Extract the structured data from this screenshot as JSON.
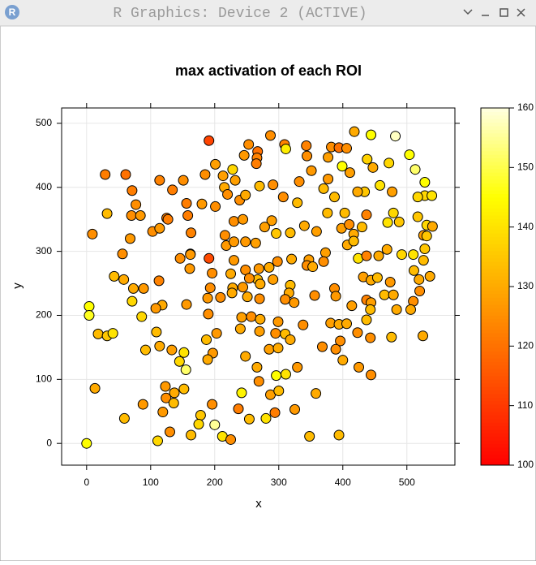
{
  "window": {
    "title": "R Graphics: Device 2 (ACTIVE)"
  },
  "chart_data": {
    "type": "scatter",
    "title": "max activation of each ROI",
    "x_label": "x",
    "y_label": "y",
    "xlim": [
      -39,
      575
    ],
    "ylim": [
      -34,
      524
    ],
    "xticks": [
      0,
      100,
      200,
      300,
      400,
      500
    ],
    "yticks": [
      0,
      100,
      200,
      300,
      400,
      500
    ],
    "zlim": [
      100,
      160
    ],
    "zticks": [
      100,
      110,
      120,
      130,
      140,
      150,
      160
    ],
    "grid": true,
    "x": [
      191,
      287,
      418,
      444,
      482,
      253,
      309,
      343,
      382,
      394,
      406,
      267,
      266,
      265,
      246,
      311,
      344,
      377,
      438,
      472,
      504,
      513,
      399,
      411,
      447,
      201,
      228,
      185,
      151,
      114,
      29,
      61,
      213,
      232,
      291,
      332,
      351,
      377,
      528,
      528,
      539,
      517,
      458,
      434,
      477,
      387,
      370,
      423,
      270,
      215,
      71,
      134,
      239,
      248,
      220,
      307,
      329,
      180,
      156,
      201,
      77,
      70,
      84,
      32,
      158,
      125,
      230,
      244,
      289,
      376,
      403,
      437,
      479,
      470,
      488,
      517,
      278,
      296,
      318,
      340,
      359,
      398,
      410,
      417,
      430,
      531,
      540,
      526,
      531,
      9,
      103,
      114,
      127,
      68,
      163,
      216,
      218,
      230,
      248,
      264,
      162,
      56,
      146,
      162,
      191,
      230,
      298,
      320,
      347,
      373,
      407,
      417,
      424,
      437,
      456,
      469,
      492,
      510,
      528,
      526,
      344,
      353,
      370,
      248,
      269,
      285,
      161,
      196,
      225,
      267,
      254,
      291,
      432,
      444,
      454,
      474,
      511,
      520,
      536,
      43,
      58,
      113,
      73,
      89,
      71,
      4,
      4,
      86,
      118,
      108,
      156,
      189,
      209,
      244,
      271,
      318,
      316,
      324,
      310,
      270,
      251,
      228,
      227,
      193,
      356,
      387,
      389,
      414,
      437,
      444,
      443,
      465,
      479,
      484,
      510,
      506,
      519,
      190,
      242,
      257,
      240,
      271,
      270,
      299,
      338,
      381,
      394,
      406,
      437,
      423,
      443,
      476,
      525,
      396,
      389,
      400,
      425,
      444,
      368,
      18,
      32,
      41,
      109,
      187,
      203,
      295,
      310,
      318,
      285,
      299,
      248,
      92,
      114,
      133,
      152,
      145,
      197,
      189,
      155,
      266,
      296,
      311,
      329,
      269,
      123,
      124,
      137,
      136,
      152,
      13,
      88,
      196,
      178,
      242,
      287,
      300,
      358,
      237,
      254,
      280,
      294,
      325,
      59,
      119,
      130,
      163,
      175,
      200,
      212,
      225,
      111,
      348,
      394,
      0
    ],
    "y": [
      473,
      481,
      487,
      482,
      480,
      467,
      467,
      465,
      463,
      462,
      461,
      456,
      446,
      437,
      450,
      460,
      449,
      447,
      444,
      438,
      451,
      428,
      433,
      423,
      431,
      436,
      428,
      420,
      411,
      411,
      420,
      420,
      418,
      411,
      404,
      409,
      426,
      413,
      408,
      387,
      387,
      385,
      403,
      393,
      393,
      385,
      398,
      393,
      402,
      400,
      395,
      396,
      380,
      388,
      389,
      385,
      376,
      374,
      375,
      370,
      373,
      356,
      356,
      359,
      356,
      352,
      347,
      350,
      348,
      360,
      360,
      357,
      360,
      345,
      346,
      354,
      338,
      328,
      329,
      340,
      331,
      336,
      342,
      327,
      338,
      341,
      339,
      325,
      324,
      327,
      331,
      336,
      350,
      320,
      329,
      325,
      309,
      315,
      315,
      313,
      296,
      296,
      289,
      295,
      289,
      286,
      284,
      288,
      287,
      298,
      310,
      316,
      289,
      293,
      293,
      303,
      295,
      295,
      304,
      286,
      278,
      276,
      284,
      271,
      273,
      275,
      273,
      266,
      265,
      256,
      258,
      256,
      260,
      255,
      259,
      252,
      270,
      238,
      261,
      261,
      256,
      254,
      242,
      242,
      222,
      214,
      200,
      198,
      216,
      211,
      217,
      227,
      228,
      244,
      249,
      247,
      235,
      220,
      225,
      226,
      229,
      243,
      235,
      243,
      231,
      242,
      230,
      215,
      224,
      220,
      209,
      232,
      232,
      209,
      222,
      209,
      256,
      202,
      197,
      198,
      179,
      194,
      175,
      190,
      185,
      188,
      186,
      187,
      193,
      173,
      165,
      166,
      168,
      160,
      147,
      130,
      119,
      107,
      151,
      171,
      168,
      172,
      174,
      162,
      172,
      172,
      171,
      162,
      147,
      149,
      136,
      146,
      152,
      146,
      142,
      128,
      141,
      131,
      115,
      119,
      106,
      108,
      119,
      97,
      89,
      71,
      79,
      63,
      85,
      86,
      61,
      61,
      44,
      79,
      76,
      82,
      78,
      54,
      38,
      39,
      48,
      53,
      39,
      49,
      18,
      13,
      30,
      29,
      11,
      6,
      4,
      11,
      13,
      0
    ],
    "z": [
      112,
      125,
      130,
      145,
      158,
      125,
      123,
      123,
      125,
      120,
      125,
      120,
      123,
      122,
      127,
      142,
      125,
      128,
      137,
      138,
      145,
      152,
      145,
      128,
      130,
      128,
      138,
      125,
      125,
      123,
      122,
      120,
      128,
      128,
      125,
      125,
      127,
      127,
      145,
      138,
      140,
      138,
      140,
      135,
      128,
      133,
      133,
      130,
      133,
      130,
      122,
      122,
      125,
      130,
      125,
      125,
      133,
      127,
      122,
      125,
      125,
      125,
      127,
      133,
      122,
      122,
      125,
      127,
      128,
      133,
      133,
      123,
      138,
      140,
      135,
      135,
      128,
      135,
      133,
      130,
      128,
      128,
      125,
      130,
      133,
      138,
      130,
      128,
      135,
      125,
      125,
      127,
      122,
      127,
      123,
      125,
      127,
      127,
      127,
      128,
      128,
      125,
      125,
      127,
      113,
      127,
      125,
      130,
      128,
      128,
      130,
      133,
      140,
      123,
      130,
      130,
      138,
      140,
      135,
      133,
      125,
      130,
      125,
      125,
      127,
      130,
      127,
      125,
      130,
      133,
      125,
      128,
      128,
      130,
      133,
      127,
      133,
      125,
      130,
      133,
      130,
      123,
      130,
      127,
      138,
      145,
      147,
      138,
      130,
      127,
      127,
      127,
      125,
      127,
      130,
      133,
      130,
      127,
      125,
      125,
      130,
      130,
      130,
      125,
      125,
      125,
      127,
      128,
      123,
      128,
      133,
      133,
      130,
      130,
      125,
      130,
      130,
      125,
      128,
      125,
      130,
      130,
      128,
      127,
      125,
      128,
      130,
      130,
      133,
      125,
      125,
      133,
      130,
      125,
      125,
      130,
      127,
      125,
      125,
      133,
      135,
      140,
      133,
      133,
      127,
      125,
      133,
      130,
      128,
      130,
      130,
      133,
      130,
      128,
      140,
      138,
      127,
      130,
      152,
      130,
      145,
      140,
      127,
      125,
      127,
      125,
      130,
      133,
      133,
      130,
      127,
      125,
      135,
      143,
      128,
      133,
      130,
      122,
      133,
      140,
      122,
      127,
      133,
      127,
      125,
      133,
      138,
      155,
      140,
      125,
      138,
      133,
      133,
      145
    ]
  }
}
